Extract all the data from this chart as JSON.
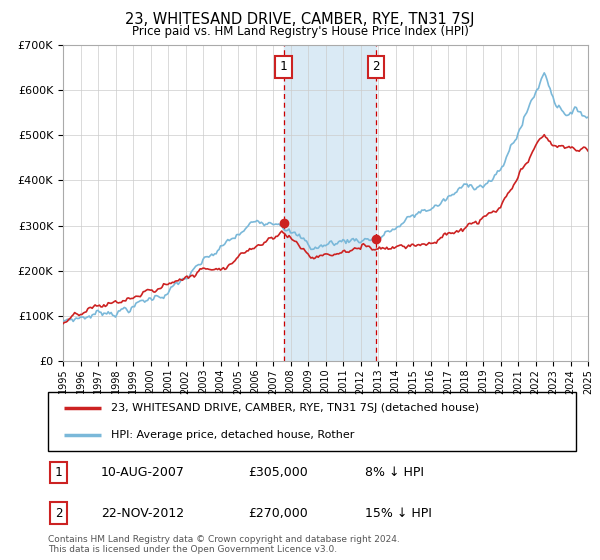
{
  "title": "23, WHITESAND DRIVE, CAMBER, RYE, TN31 7SJ",
  "subtitle": "Price paid vs. HM Land Registry's House Price Index (HPI)",
  "legend_line1": "23, WHITESAND DRIVE, CAMBER, RYE, TN31 7SJ (detached house)",
  "legend_line2": "HPI: Average price, detached house, Rother",
  "footer": "Contains HM Land Registry data © Crown copyright and database right 2024.\nThis data is licensed under the Open Government Licence v3.0.",
  "sale1_date": "10-AUG-2007",
  "sale1_price": "£305,000",
  "sale1_hpi": "8% ↓ HPI",
  "sale2_date": "22-NOV-2012",
  "sale2_price": "£270,000",
  "sale2_hpi": "15% ↓ HPI",
  "sale1_year": 2007.6,
  "sale1_value": 305000,
  "sale2_year": 2012.9,
  "sale2_value": 270000,
  "hpi_color": "#7ab8d9",
  "price_color": "#cc2222",
  "highlight_color": "#daeaf5",
  "ylim": [
    0,
    700000
  ],
  "xlim_start": 1995,
  "xlim_end": 2025,
  "background_color": "#ffffff",
  "grid_color": "#cccccc"
}
